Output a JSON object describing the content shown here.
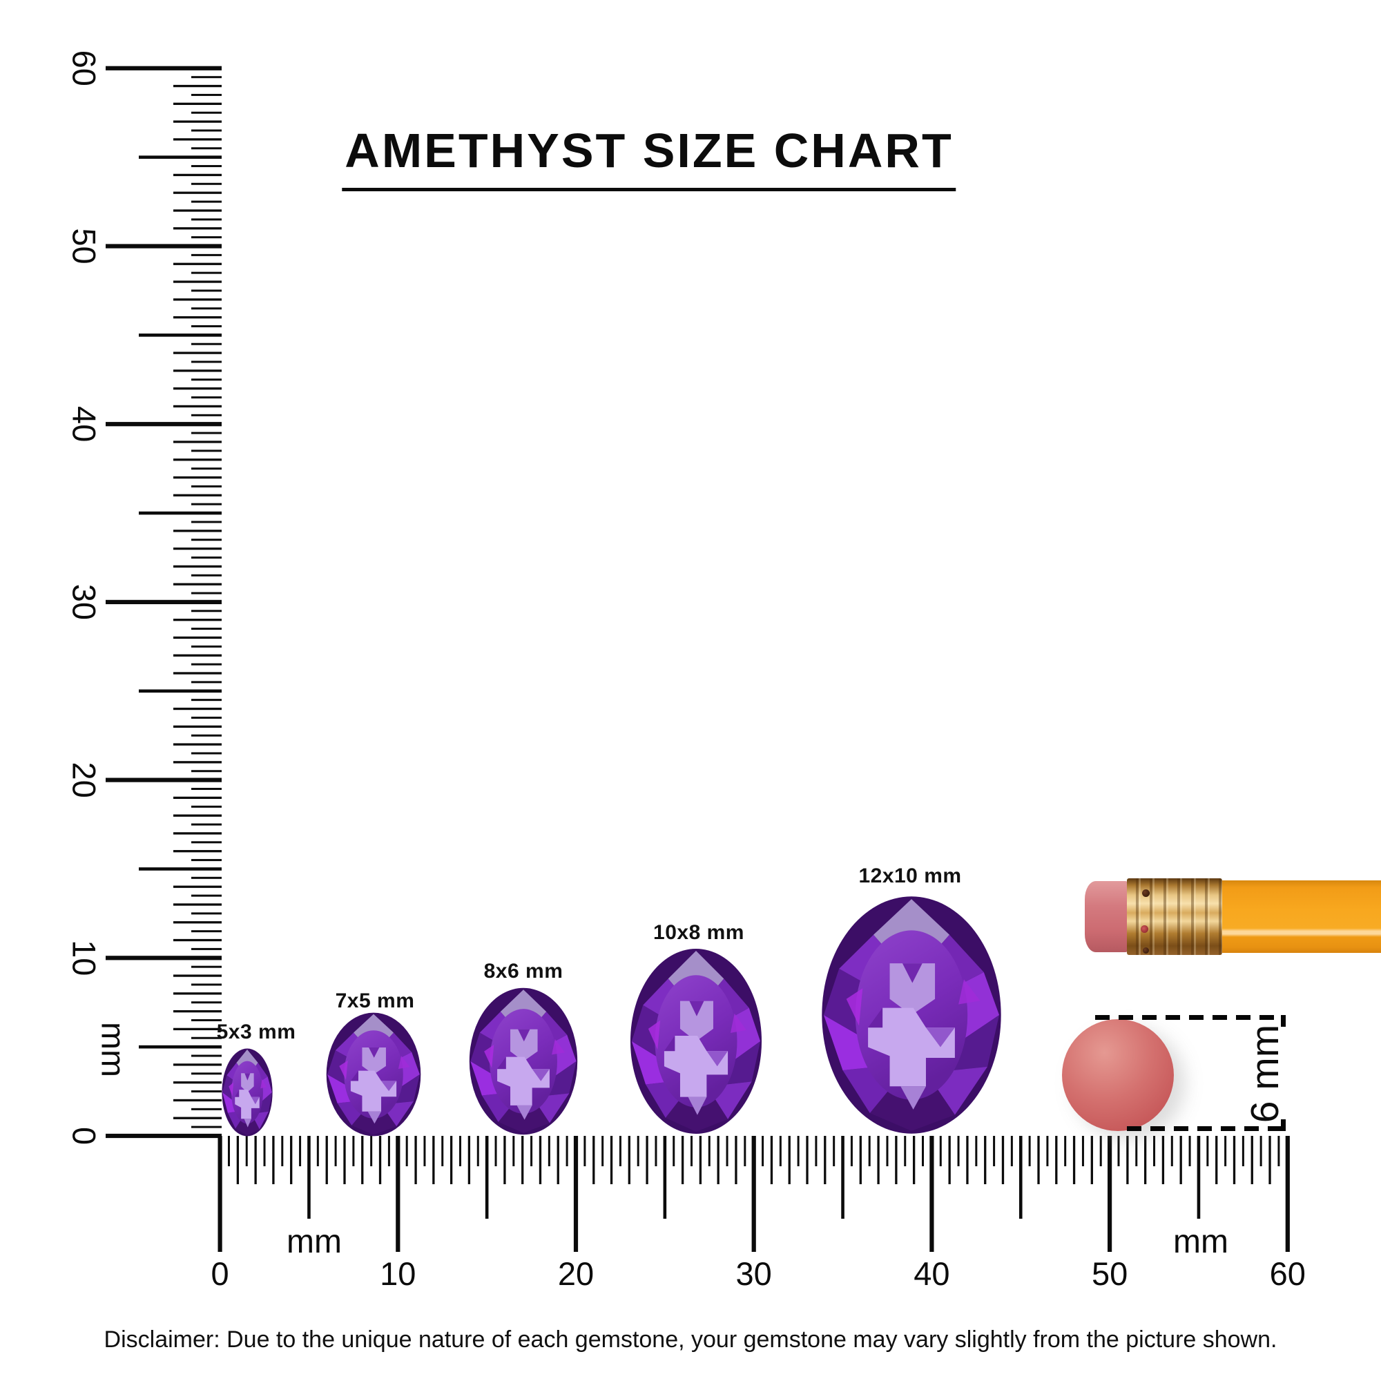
{
  "title": "AMETHYST SIZE CHART",
  "rulers": {
    "vertical": {
      "unit": "mm",
      "labels": [
        "0",
        "10",
        "20",
        "30",
        "40",
        "50",
        "60"
      ]
    },
    "horizontal": {
      "unit_labels": [
        "mm",
        "mm"
      ],
      "labels": [
        "0",
        "10",
        "20",
        "30",
        "40",
        "50",
        "60"
      ]
    }
  },
  "gems": [
    {
      "label": "5x3 mm"
    },
    {
      "label": "7x5 mm"
    },
    {
      "label": "8x6 mm"
    },
    {
      "label": "10x8 mm"
    },
    {
      "label": "12x10 mm"
    }
  ],
  "reference": {
    "disc_diameter": "6 mm"
  },
  "disclaimer": "Disclaimer: Due to the unique nature of each gemstone, your gemstone may vary slightly from the picture shown.",
  "colors": {
    "ink": "#0b0b0b",
    "background": "#ffffff",
    "gem_deep_purple": "#55187e",
    "gem_violet": "#8a2fd0",
    "gem_light_lavender": "#c7a8ee",
    "pencil_orange": "#f8a81f",
    "ferrule_gold": "#e8c684",
    "eraser_pink": "#d47a7f",
    "disc_red": "#cd5b5e"
  }
}
